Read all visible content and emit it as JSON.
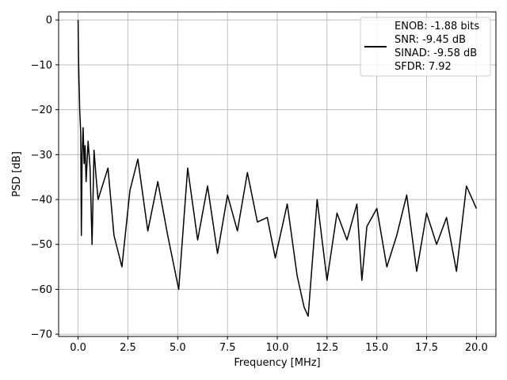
{
  "chart_data": {
    "type": "line",
    "title": "",
    "xlabel": "Frequency [MHz]",
    "ylabel": "PSD [dB]",
    "xlim": [
      -0.98,
      20.98
    ],
    "ylim": [
      -70.5,
      1.8
    ],
    "x_ticks": [
      0.0,
      2.5,
      5.0,
      7.5,
      10.0,
      12.5,
      15.0,
      17.5,
      20.0
    ],
    "x_tick_labels": [
      "0.0",
      "2.5",
      "5.0",
      "7.5",
      "10.0",
      "12.5",
      "15.0",
      "17.5",
      "20.0"
    ],
    "y_ticks": [
      0,
      -10,
      -20,
      -30,
      -40,
      -50,
      -60,
      -70
    ],
    "y_tick_labels": [
      "0",
      "−10",
      "−20",
      "−30",
      "−40",
      "−50",
      "−60",
      "−70"
    ],
    "grid": true,
    "legend_position": "top-right",
    "legend_entries": [
      "ENOB: -1.88 bits",
      "SNR: -9.45 dB",
      "SINAD: -9.58 dB",
      "SFDR: 7.92"
    ],
    "line_color": "#000000",
    "series": [
      {
        "x": [
          0.0,
          0.02,
          0.04,
          0.06,
          0.08,
          0.1,
          0.13,
          0.16,
          0.2,
          0.25,
          0.3,
          0.35,
          0.4,
          0.5,
          0.6,
          0.7,
          0.8,
          0.9,
          1.0,
          1.5,
          1.8,
          2.2,
          2.6,
          3.0,
          3.5,
          4.0,
          4.5,
          5.05,
          5.5,
          6.0,
          6.5,
          7.0,
          7.5,
          8.0,
          8.5,
          9.0,
          9.5,
          9.9,
          10.5,
          11.0,
          11.35,
          11.55,
          12.0,
          12.5,
          13.0,
          13.5,
          14.0,
          14.25,
          14.5,
          15.0,
          15.5,
          16.0,
          16.5,
          17.0,
          17.5,
          18.0,
          18.5,
          19.0,
          19.5,
          20.0
        ],
        "values": [
          0,
          -8,
          -13,
          -16,
          -20,
          -22,
          -25,
          -48,
          -30,
          -24,
          -32,
          -28,
          -36,
          -27,
          -33,
          -50,
          -29,
          -35,
          -40,
          -33,
          -48,
          -55,
          -38,
          -31,
          -47,
          -36,
          -48,
          -60,
          -33,
          -49,
          -37,
          -52,
          -39,
          -47,
          -34,
          -45,
          -44,
          -53,
          -41,
          -57,
          -64,
          -66,
          -40,
          -58,
          -43,
          -49,
          -41,
          -58,
          -46,
          -42,
          -55,
          -48,
          -39,
          -56,
          -43,
          -50,
          -44,
          -56,
          -37,
          -42
        ]
      }
    ]
  }
}
